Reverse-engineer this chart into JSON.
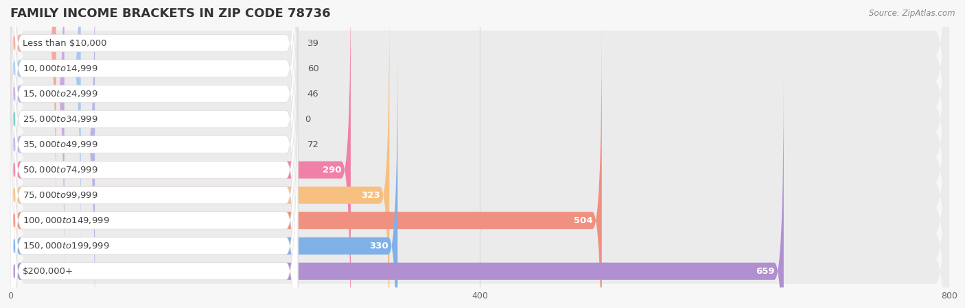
{
  "title": "FAMILY INCOME BRACKETS IN ZIP CODE 78736",
  "source": "Source: ZipAtlas.com",
  "categories": [
    "Less than $10,000",
    "$10,000 to $14,999",
    "$15,000 to $24,999",
    "$25,000 to $34,999",
    "$35,000 to $49,999",
    "$50,000 to $74,999",
    "$75,000 to $99,999",
    "$100,000 to $149,999",
    "$150,000 to $199,999",
    "$200,000+"
  ],
  "values": [
    39,
    60,
    46,
    0,
    72,
    290,
    323,
    504,
    330,
    659
  ],
  "bar_colors": [
    "#f5a8a0",
    "#a8c8f0",
    "#c8aae0",
    "#70cfc0",
    "#b8b4e8",
    "#f080a8",
    "#f8c080",
    "#f09080",
    "#80b0e8",
    "#b090d0"
  ],
  "xlim": [
    0,
    800
  ],
  "xticks": [
    0,
    400,
    800
  ],
  "bg_color": "#f7f7f7",
  "bar_bg_color": "#ebebeb",
  "white_color": "#ffffff",
  "grid_color": "#d8d8d8",
  "title_fontsize": 13,
  "label_fontsize": 9.5,
  "value_fontsize": 9.5,
  "tick_fontsize": 9,
  "bar_height": 0.68,
  "bar_gap": 0.32
}
